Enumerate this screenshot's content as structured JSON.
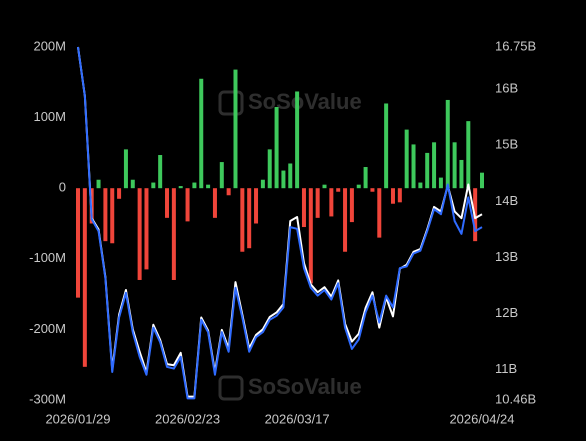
{
  "chart_data": {
    "type": "bar_line",
    "watermark": "SoSoValue",
    "categories": [
      "2026/01/29",
      null,
      null,
      null,
      null,
      null,
      null,
      null,
      null,
      null,
      null,
      null,
      null,
      null,
      null,
      null,
      "2026/02/23",
      null,
      null,
      null,
      null,
      null,
      null,
      null,
      null,
      null,
      null,
      null,
      null,
      null,
      null,
      null,
      "2026/03/17",
      null,
      null,
      null,
      null,
      null,
      null,
      null,
      null,
      null,
      null,
      null,
      null,
      null,
      null,
      null,
      null,
      null,
      null,
      null,
      null,
      null,
      null,
      null,
      null,
      null,
      null,
      "2026/04/24"
    ],
    "ylim": [
      -300000000,
      200000000
    ],
    "yticks": [
      {
        "value": 200000000,
        "label": "200M"
      },
      {
        "value": 100000000,
        "label": "100M"
      },
      0,
      {
        "value": -100000000,
        "label": "-100M"
      },
      {
        "value": -200000000,
        "label": "-200M"
      },
      {
        "value": -300000000,
        "label": "-300M"
      }
    ],
    "y2lim": [
      10460000000,
      16750000000
    ],
    "y2ticks": [
      {
        "value": 16750000000,
        "label": "16.75B"
      },
      {
        "value": 16000000000,
        "label": "16B"
      },
      {
        "value": 15000000000,
        "label": "15B"
      },
      {
        "value": 14000000000,
        "label": "14B"
      },
      {
        "value": 13000000000,
        "label": "13B"
      },
      {
        "value": 12000000000,
        "label": "12B"
      },
      {
        "value": 11000000000,
        "label": "11B"
      },
      {
        "value": 10460000000,
        "label": "10.46B"
      }
    ],
    "series": [
      {
        "type": "bar",
        "positive_color": "#3ec95c",
        "negative_color": "#f0453a",
        "values": [
          -155000000,
          -253000000,
          -50000000,
          12000000,
          -75000000,
          -78000000,
          -15000000,
          55000000,
          12000000,
          -130000000,
          -115000000,
          8000000,
          47000000,
          -42000000,
          -130000000,
          3000000,
          -47000000,
          8000000,
          155000000,
          5000000,
          -42000000,
          37000000,
          -10000000,
          168000000,
          -90000000,
          -85000000,
          -50000000,
          12000000,
          55000000,
          115000000,
          25000000,
          35000000,
          137000000,
          -55000000,
          -135000000,
          -42000000,
          5000000,
          -40000000,
          -5000000,
          -90000000,
          -48000000,
          5000000,
          30000000,
          -5000000,
          -70000000,
          120000000,
          -22000000,
          -20000000,
          83000000,
          62000000,
          8000000,
          50000000,
          65000000,
          15000000,
          125000000,
          65000000,
          40000000,
          95000000,
          -75000000,
          22000000
        ]
      },
      {
        "type": "line",
        "axis": "y2",
        "color": "#ffffff",
        "values": [
          16750000000,
          15880000000,
          13700000000,
          13500000000,
          12650000000,
          11000000000,
          11980000000,
          12420000000,
          11720000000,
          11320000000,
          10950000000,
          11800000000,
          11530000000,
          11100000000,
          11080000000,
          11300000000,
          10520000000,
          10520000000,
          11930000000,
          11700000000,
          10960000000,
          11710000000,
          11380000000,
          12560000000,
          11980000000,
          11380000000,
          11620000000,
          11720000000,
          11940000000,
          12020000000,
          12170000000,
          13650000000,
          13720000000,
          12900000000,
          12520000000,
          12380000000,
          12470000000,
          12300000000,
          12590000000,
          11820000000,
          11500000000,
          11640000000,
          12100000000,
          12380000000,
          11750000000,
          12290000000,
          11950000000,
          12800000000,
          12870000000,
          13100000000,
          13150000000,
          13500000000,
          13900000000,
          13820000000,
          14280000000,
          13820000000,
          13700000000,
          14300000000,
          13700000000,
          13770000000
        ]
      },
      {
        "type": "line",
        "axis": "y2",
        "color": "#2f6bff",
        "values": [
          16750000000,
          15880000000,
          13680000000,
          13470000000,
          12630000000,
          10960000000,
          11930000000,
          12370000000,
          11670000000,
          11230000000,
          10910000000,
          11750000000,
          11490000000,
          11050000000,
          11020000000,
          11230000000,
          10490000000,
          10490000000,
          11890000000,
          11670000000,
          10910000000,
          11670000000,
          11320000000,
          12460000000,
          11930000000,
          11320000000,
          11580000000,
          11670000000,
          11890000000,
          11960000000,
          12110000000,
          13540000000,
          13510000000,
          12810000000,
          12460000000,
          12320000000,
          12420000000,
          12250000000,
          12540000000,
          11750000000,
          11370000000,
          11540000000,
          12020000000,
          12320000000,
          11840000000,
          12320000000,
          12110000000,
          12810000000,
          12840000000,
          13070000000,
          13120000000,
          13470000000,
          13860000000,
          13770000000,
          14300000000,
          13650000000,
          13420000000,
          14070000000,
          13470000000,
          13540000000
        ]
      }
    ]
  }
}
